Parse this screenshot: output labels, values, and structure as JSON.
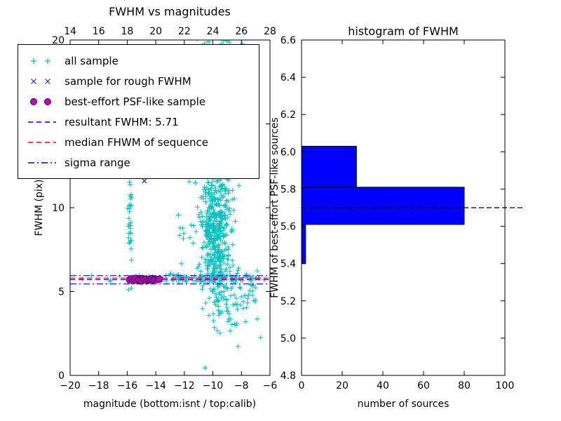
{
  "figure": {
    "background": "#ffffff",
    "frame_color": "#000000"
  },
  "chart_data": [
    {
      "type": "scatter",
      "title": "FWHM vs magnitudes",
      "xlabel": "magnitude (bottom:isnt / top:calib)",
      "ylabel": "FWHM (pix)",
      "xlim": [
        -20,
        -6
      ],
      "x_top_lim": [
        14,
        28
      ],
      "ylim": [
        0,
        20
      ],
      "grid": false,
      "legend_position": "upper left",
      "xticks": {
        "values": [
          -20,
          -18,
          -16,
          -14,
          -12,
          -10,
          -8,
          -6
        ],
        "labels": [
          "−20",
          "−18",
          "−16",
          "−14",
          "−12",
          "−10",
          "−8",
          "−6"
        ]
      },
      "xticks_top": {
        "values": [
          14,
          16,
          18,
          20,
          22,
          24,
          26,
          28
        ],
        "labels": [
          "14",
          "16",
          "18",
          "20",
          "22",
          "24",
          "26",
          "28"
        ]
      },
      "yticks": {
        "values": [
          0,
          5,
          10,
          15,
          20
        ],
        "labels": [
          "0",
          "5",
          "10",
          "15",
          "20"
        ]
      },
      "legend": [
        {
          "label": "all sample",
          "marker": "plus",
          "color": "#00bfbf"
        },
        {
          "label": "sample for rough FWHM",
          "marker": "x",
          "color": "#2222cc"
        },
        {
          "label": "best-effort PSF-like sample",
          "marker": "circle",
          "color": "#bf00bf",
          "edge_color": "#3d003d"
        },
        {
          "label": "resultant FWHM: 5.71",
          "marker": "dashed-line",
          "color": "#0000ee"
        },
        {
          "label": "median FHWM of sequence",
          "marker": "dashed-line",
          "color": "#ff0000"
        },
        {
          "label": "sigma range",
          "marker": "dashdot-line",
          "color": "#0000ee"
        }
      ],
      "hlines": [
        {
          "y": 5.95,
          "style": "dashdot",
          "color": "#0000ee",
          "legend": "sigma range"
        },
        {
          "y": 5.45,
          "style": "dashdot",
          "color": "#0000ee",
          "legend": "sigma range"
        },
        {
          "y": 5.8,
          "style": "dashed",
          "color": "#ff0000",
          "legend": "median FHWM of sequence"
        },
        {
          "y": 5.71,
          "style": "dashed",
          "color": "#0000ee",
          "legend": "resultant FWHM: 5.71"
        }
      ],
      "series": [
        {
          "name": "all sample",
          "marker": "plus",
          "color": "#00bfbf",
          "seed": 1337,
          "clusters": [
            {
              "cx": -9.8,
              "cy": 8.0,
              "sx": 0.5,
              "sy": 1.8,
              "n": 420
            },
            {
              "cx": -9.7,
              "cy": 12.0,
              "sx": 0.6,
              "sy": 1.6,
              "n": 130
            },
            {
              "cx": -9.6,
              "cy": 16.5,
              "sx": 0.9,
              "sy": 1.8,
              "n": 90
            },
            {
              "cx": -10.0,
              "cy": 19.6,
              "sx": 1.2,
              "sy": 0.7,
              "n": 45
            },
            {
              "cx": -8.6,
              "cy": 4.4,
              "sx": 0.8,
              "sy": 1.0,
              "n": 70
            },
            {
              "cx": -11.5,
              "cy": 5.8,
              "sx": 2.9,
              "sy": 0.13,
              "n": 130
            },
            {
              "cx": -15.8,
              "cy": 8.4,
              "sx": 0.07,
              "sy": 1.9,
              "n": 32
            },
            {
              "cx": -11.6,
              "cy": 8.5,
              "sx": 0.7,
              "sy": 1.5,
              "n": 18
            },
            {
              "cx": -7.2,
              "cy": 5.3,
              "sx": 0.5,
              "sy": 0.6,
              "n": 12
            },
            {
              "cx": -12.0,
              "cy": 16.5,
              "sx": 0.6,
              "sy": 2.0,
              "n": 8
            }
          ]
        },
        {
          "name": "sample for rough FWHM",
          "marker": "x",
          "color": "#2222cc",
          "points": [
            [
              -14.8,
              11.6
            ],
            [
              -15.8,
              5.72
            ],
            [
              -15.55,
              5.7
            ],
            [
              -15.3,
              5.75
            ],
            [
              -15.05,
              5.68
            ],
            [
              -14.8,
              5.73
            ],
            [
              -14.55,
              5.7
            ],
            [
              -14.3,
              5.76
            ],
            [
              -14.05,
              5.69
            ],
            [
              -13.8,
              5.72
            ]
          ]
        },
        {
          "name": "best-effort PSF-like sample",
          "marker": "circle",
          "color": "#bf00bf",
          "edge_color": "#3d003d",
          "points": [
            [
              -15.85,
              5.7
            ],
            [
              -15.7,
              5.76
            ],
            [
              -15.6,
              5.64
            ],
            [
              -15.5,
              5.72
            ],
            [
              -15.4,
              5.8
            ],
            [
              -15.3,
              5.66
            ],
            [
              -15.2,
              5.74
            ],
            [
              -15.1,
              5.7
            ],
            [
              -15.0,
              5.62
            ],
            [
              -14.9,
              5.78
            ],
            [
              -14.8,
              5.7
            ],
            [
              -14.7,
              5.74
            ],
            [
              -14.6,
              5.64
            ],
            [
              -14.5,
              5.72
            ],
            [
              -14.4,
              5.7
            ],
            [
              -14.3,
              5.76
            ],
            [
              -14.2,
              5.68
            ],
            [
              -14.05,
              5.72
            ],
            [
              -13.9,
              5.7
            ],
            [
              -13.75,
              5.74
            ]
          ]
        }
      ]
    },
    {
      "type": "histogram-horizontal",
      "title": "histogram of FWHM",
      "xlabel": "number of sources",
      "ylabel": "FWHM of best-effort PSF-like sources",
      "xlim": [
        0,
        100
      ],
      "ylim": [
        4.8,
        6.6
      ],
      "grid": false,
      "xticks": {
        "values": [
          0,
          20,
          40,
          60,
          80,
          100
        ],
        "labels": [
          "0",
          "20",
          "40",
          "60",
          "80",
          "100"
        ]
      },
      "yticks": {
        "values": [
          4.8,
          5.0,
          5.2,
          5.4,
          5.6,
          5.8,
          6.0,
          6.2,
          6.4,
          6.6
        ],
        "labels": [
          "4.8",
          "5.0",
          "5.2",
          "5.4",
          "5.6",
          "5.8",
          "6.0",
          "6.2",
          "6.4",
          "6.6"
        ]
      },
      "bar_color": "#0000ff",
      "bar_edge_color": "#000000",
      "bins": [
        {
          "from": 5.4,
          "to": 5.61,
          "count": 2
        },
        {
          "from": 5.61,
          "to": 5.81,
          "count": 80
        },
        {
          "from": 5.81,
          "to": 6.03,
          "count": 27
        }
      ],
      "median_line": {
        "y": 5.7,
        "style": "dashed",
        "color": "#000000"
      }
    }
  ]
}
